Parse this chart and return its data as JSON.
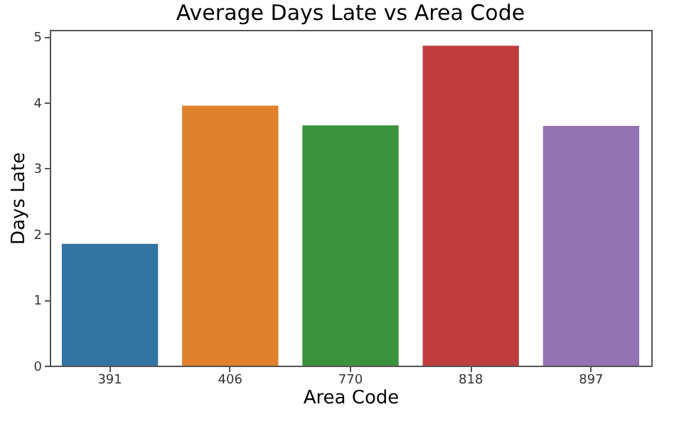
{
  "chart_data": {
    "type": "bar",
    "title": "Average Days Late vs Area Code",
    "xlabel": "Area Code",
    "ylabel": "Days Late",
    "categories": [
      "391",
      "406",
      "770",
      "818",
      "897"
    ],
    "values": [
      1.85,
      3.95,
      3.65,
      4.86,
      3.64
    ],
    "colors": [
      "#3274a1",
      "#e1812c",
      "#3a923a",
      "#c03d3e",
      "#9372b2"
    ],
    "ylim": [
      0,
      5.1
    ],
    "yticks": [
      0,
      1,
      2,
      3,
      4,
      5
    ],
    "grid": false,
    "legend": false
  }
}
